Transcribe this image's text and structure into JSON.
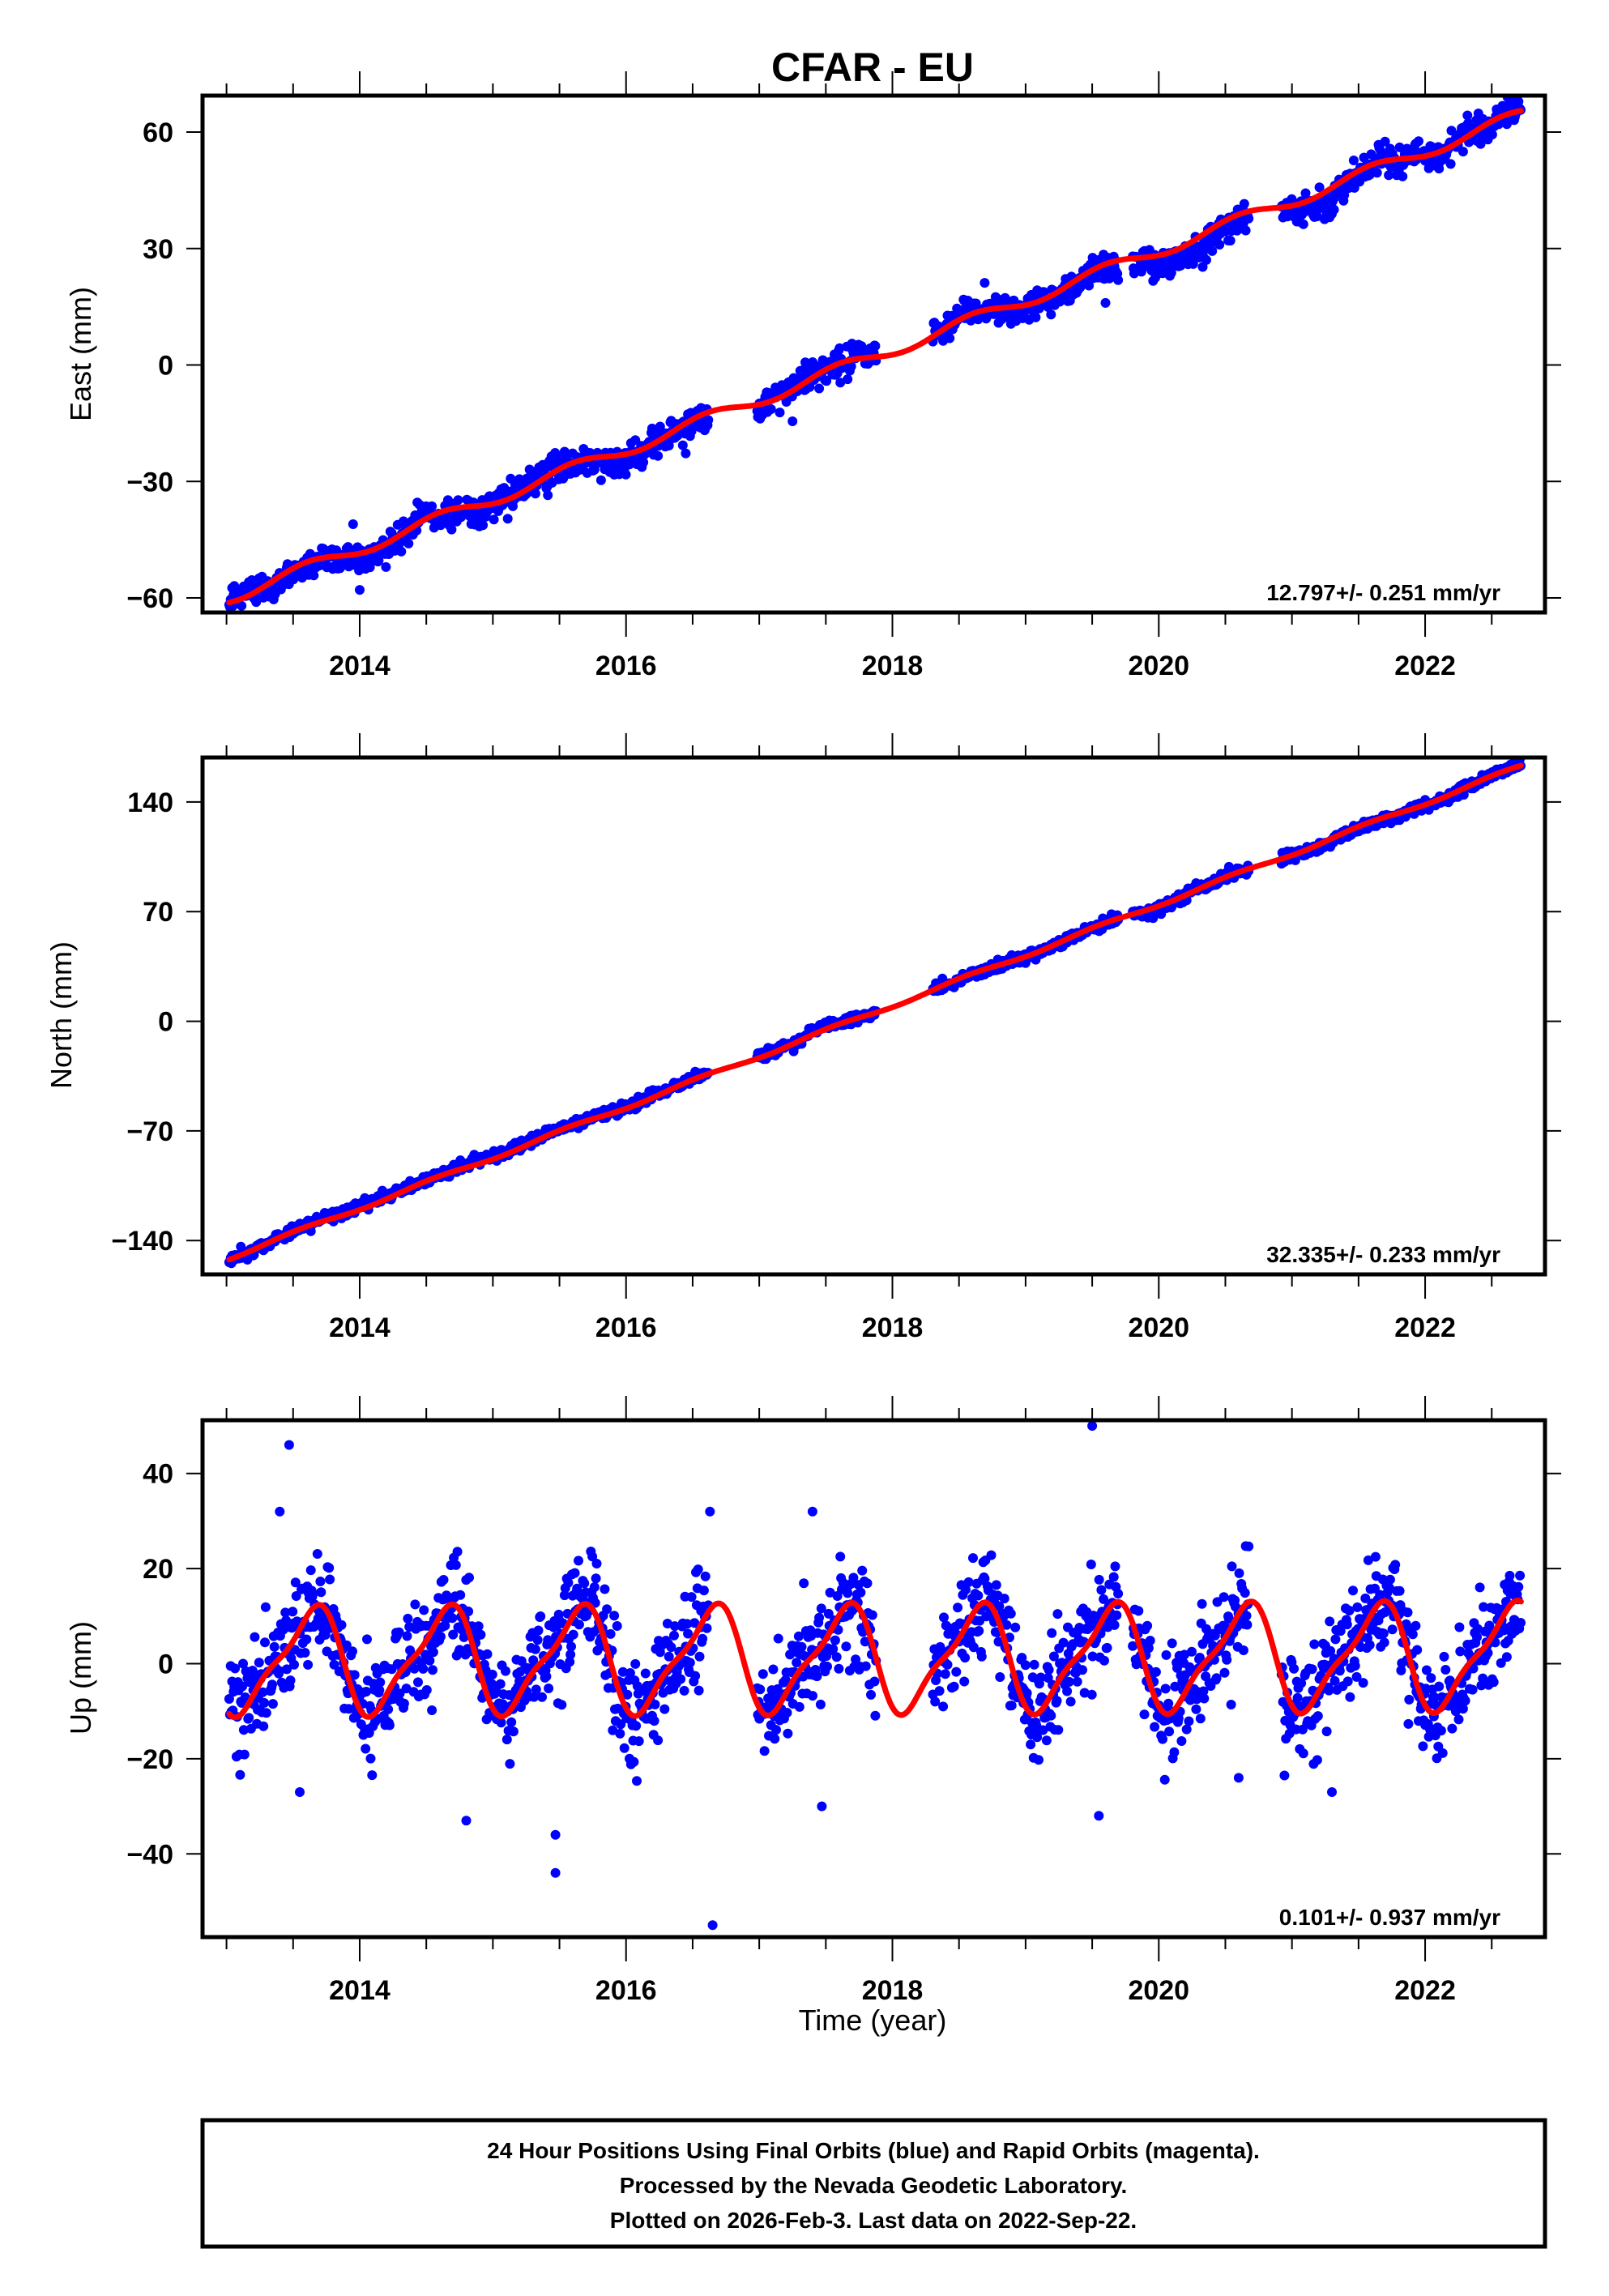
{
  "chart_data": [
    {
      "type": "scatter",
      "panel": "east",
      "title": "CFAR - EU",
      "ylabel": "East (mm)",
      "xlabel": "",
      "xlim": [
        2012.82,
        2022.9
      ],
      "ylim": [
        -63.75,
        69.4
      ],
      "xticks": [
        2014,
        2016,
        2018,
        2020,
        2022
      ],
      "xtick_labels": [
        "2014",
        "2016",
        "2018",
        "2020",
        "2022"
      ],
      "xminor_step": 0.5,
      "yticks": [
        -60,
        -30,
        0,
        30,
        60
      ],
      "ytick_labels": [
        "−60",
        "−30",
        "0",
        "30",
        "60"
      ],
      "rate_text": "12.797+/- 0.251 mm/yr",
      "series": [
        {
          "name": "Final Orbits",
          "color": "#0000ff",
          "kind": "points",
          "x_range": [
            2013.02,
            2022.72
          ],
          "offset_at_start": -59.8,
          "velocity": 12.797,
          "annual_amp": 1.6,
          "annual_phase": 0.35,
          "noise": 1.8,
          "segment_noise": 1.6,
          "gaps": [
            [
              2016.62,
              2016.98
            ],
            [
              2017.88,
              2018.3
            ],
            [
              2019.7,
              2019.8
            ],
            [
              2020.68,
              2020.92
            ]
          ],
          "outliers": [
            [
              2014.45,
              -36.0
            ],
            [
              2017.25,
              -14.5
            ],
            [
              2019.6,
              16.0
            ],
            [
              2013.95,
              -41.0
            ]
          ]
        },
        {
          "name": "Model fit",
          "color": "#ff0000",
          "kind": "line",
          "x_range": [
            2013.02,
            2022.72
          ],
          "offset_at_start": -59.8,
          "velocity": 12.797,
          "annual_amp": 1.6,
          "annual_phase": 0.35
        }
      ]
    },
    {
      "type": "scatter",
      "panel": "north",
      "ylabel": "North (mm)",
      "xlabel": "",
      "xlim": [
        2012.82,
        2022.9
      ],
      "ylim": [
        -161.6,
        168.4
      ],
      "xticks": [
        2014,
        2016,
        2018,
        2020,
        2022
      ],
      "xtick_labels": [
        "2014",
        "2016",
        "2018",
        "2020",
        "2022"
      ],
      "xminor_step": 0.5,
      "yticks": [
        -140,
        -70,
        0,
        70,
        140
      ],
      "ytick_labels": [
        "−140",
        "−70",
        "0",
        "70",
        "140"
      ],
      "rate_text": "32.335+/- 0.233 mm/yr",
      "series": [
        {
          "name": "Final Orbits",
          "color": "#0000ff",
          "kind": "points",
          "x_range": [
            2013.02,
            2022.72
          ],
          "offset_at_start": -151.0,
          "velocity": 32.335,
          "annual_amp": 1.2,
          "annual_phase": 0.3,
          "noise": 1.6,
          "segment_noise": 1.2,
          "gaps": [
            [
              2016.62,
              2016.98
            ],
            [
              2017.88,
              2018.3
            ],
            [
              2019.7,
              2019.8
            ],
            [
              2020.68,
              2020.92
            ]
          ],
          "outliers": []
        },
        {
          "name": "Model fit",
          "color": "#ff0000",
          "kind": "line",
          "x_range": [
            2013.02,
            2022.72
          ],
          "offset_at_start": -151.0,
          "velocity": 32.335,
          "annual_amp": 1.2,
          "annual_phase": 0.3
        }
      ]
    },
    {
      "type": "scatter",
      "panel": "up",
      "ylabel": "Up (mm)",
      "xlabel": "Time (year)",
      "xlim": [
        2012.82,
        2022.9
      ],
      "ylim": [
        -57.5,
        51.2
      ],
      "xticks": [
        2014,
        2016,
        2018,
        2020,
        2022
      ],
      "xtick_labels": [
        "2014",
        "2016",
        "2018",
        "2020",
        "2022"
      ],
      "xminor_step": 0.5,
      "yticks": [
        -40,
        -20,
        0,
        20,
        40
      ],
      "ytick_labels": [
        "−40",
        "−20",
        "0",
        "20",
        "40"
      ],
      "rate_text": "0.101+/- 0.937 mm/yr",
      "series": [
        {
          "name": "Final Orbits",
          "color": "#0000ff",
          "kind": "points",
          "x_range": [
            2013.02,
            2022.72
          ],
          "offset_at_start": 0.5,
          "velocity": 0.101,
          "annual_amp": 10.5,
          "annual_phase": 0.38,
          "semiannual_amp": 3.0,
          "semiannual_phase": 0.13,
          "noise": 5.5,
          "segment_noise": 0,
          "gaps": [
            [
              2016.62,
              2016.98
            ],
            [
              2017.88,
              2018.3
            ],
            [
              2019.7,
              2019.8
            ],
            [
              2020.68,
              2020.92
            ]
          ],
          "outliers": [
            [
              2013.47,
              46.0
            ],
            [
              2013.55,
              -27.0
            ],
            [
              2014.8,
              -33.0
            ],
            [
              2015.47,
              -36.0
            ],
            [
              2015.47,
              -44.0
            ],
            [
              2016.65,
              -55.0
            ],
            [
              2016.63,
              32.0
            ],
            [
              2017.4,
              32.0
            ],
            [
              2017.47,
              -30.0
            ],
            [
              2019.5,
              50.0
            ],
            [
              2019.55,
              -32.0
            ],
            [
              2020.6,
              -24.0
            ],
            [
              2021.3,
              -27.0
            ],
            [
              2013.4,
              32.0
            ]
          ]
        },
        {
          "name": "Model fit",
          "color": "#ff0000",
          "kind": "line",
          "x_range": [
            2013.02,
            2022.72
          ],
          "offset_at_start": 0.5,
          "velocity": 0.101,
          "annual_amp": 10.5,
          "annual_phase": 0.38,
          "semiannual_amp": 3.0,
          "semiannual_phase": 0.13
        }
      ]
    }
  ],
  "footer": {
    "line1": "24 Hour Positions Using Final Orbits (blue) and Rapid Orbits (magenta).",
    "line2": "Processed by the Nevada Geodetic Laboratory.",
    "line3": "Plotted on 2026-Feb-3. Last data on 2022-Sep-22."
  }
}
